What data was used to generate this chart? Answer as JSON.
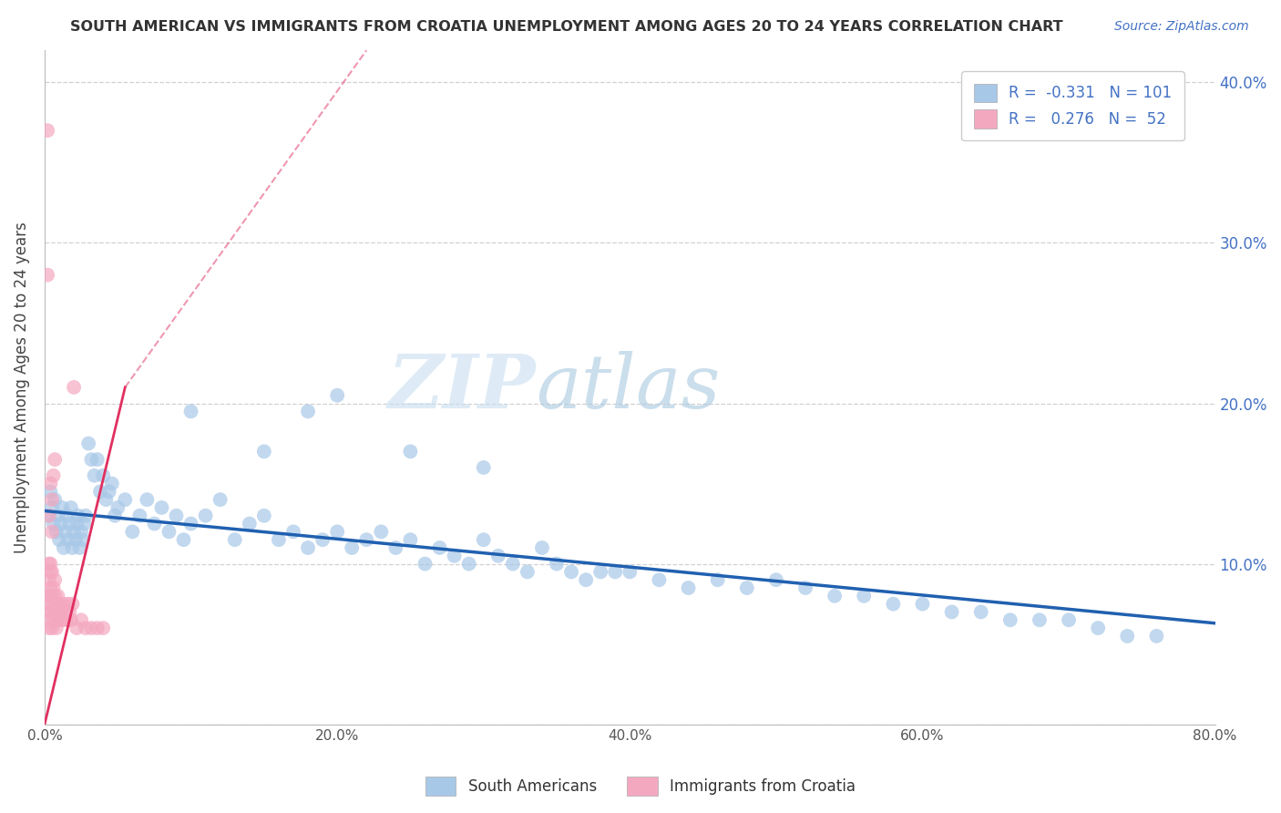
{
  "title": "SOUTH AMERICAN VS IMMIGRANTS FROM CROATIA UNEMPLOYMENT AMONG AGES 20 TO 24 YEARS CORRELATION CHART",
  "source": "Source: ZipAtlas.com",
  "ylabel": "Unemployment Among Ages 20 to 24 years",
  "xlim": [
    0.0,
    0.8
  ],
  "ylim": [
    0.0,
    0.42
  ],
  "xticks": [
    0.0,
    0.2,
    0.4,
    0.6,
    0.8
  ],
  "yticks": [
    0.0,
    0.1,
    0.2,
    0.3,
    0.4
  ],
  "xtick_labels": [
    "0.0%",
    "20.0%",
    "40.0%",
    "60.0%",
    "80.0%"
  ],
  "ytick_labels": [
    "",
    "10.0%",
    "20.0%",
    "30.0%",
    "40.0%"
  ],
  "blue_color": "#a8c8e8",
  "pink_color": "#f4a8c0",
  "blue_line_color": "#2060b0",
  "pink_line_color": "#e03060",
  "R_blue": -0.331,
  "N_blue": 101,
  "R_pink": 0.276,
  "N_pink": 52,
  "legend_label_blue": "South Americans",
  "legend_label_pink": "Immigrants from Croatia",
  "watermark_zip": "ZIP",
  "watermark_atlas": "atlas",
  "blue_trend_x0": 0.0,
  "blue_trend_y0": 0.133,
  "blue_trend_x1": 0.8,
  "blue_trend_y1": 0.063,
  "pink_trend_solid_x0": 0.0,
  "pink_trend_solid_y0": 0.0,
  "pink_trend_solid_x1": 0.055,
  "pink_trend_solid_y1": 0.21,
  "pink_trend_dash_x0": 0.055,
  "pink_trend_dash_y0": 0.21,
  "pink_trend_dash_x1": 0.22,
  "pink_trend_dash_y1": 0.42,
  "blue_scatter_x": [
    0.003,
    0.004,
    0.005,
    0.006,
    0.007,
    0.008,
    0.009,
    0.01,
    0.011,
    0.012,
    0.013,
    0.014,
    0.015,
    0.016,
    0.017,
    0.018,
    0.019,
    0.02,
    0.021,
    0.022,
    0.023,
    0.024,
    0.025,
    0.026,
    0.027,
    0.028,
    0.03,
    0.032,
    0.034,
    0.036,
    0.038,
    0.04,
    0.042,
    0.044,
    0.046,
    0.048,
    0.05,
    0.055,
    0.06,
    0.065,
    0.07,
    0.075,
    0.08,
    0.085,
    0.09,
    0.095,
    0.1,
    0.11,
    0.12,
    0.13,
    0.14,
    0.15,
    0.16,
    0.17,
    0.18,
    0.19,
    0.2,
    0.21,
    0.22,
    0.23,
    0.24,
    0.25,
    0.26,
    0.27,
    0.28,
    0.29,
    0.3,
    0.31,
    0.32,
    0.33,
    0.34,
    0.35,
    0.36,
    0.37,
    0.38,
    0.39,
    0.4,
    0.42,
    0.44,
    0.46,
    0.48,
    0.5,
    0.52,
    0.54,
    0.56,
    0.58,
    0.6,
    0.62,
    0.64,
    0.66,
    0.68,
    0.7,
    0.72,
    0.74,
    0.76,
    0.1,
    0.15,
    0.18,
    0.2,
    0.25,
    0.3
  ],
  "blue_scatter_y": [
    0.13,
    0.145,
    0.135,
    0.125,
    0.14,
    0.12,
    0.13,
    0.115,
    0.125,
    0.135,
    0.11,
    0.12,
    0.13,
    0.115,
    0.125,
    0.135,
    0.11,
    0.12,
    0.115,
    0.125,
    0.13,
    0.11,
    0.12,
    0.115,
    0.125,
    0.13,
    0.175,
    0.165,
    0.155,
    0.165,
    0.145,
    0.155,
    0.14,
    0.145,
    0.15,
    0.13,
    0.135,
    0.14,
    0.12,
    0.13,
    0.14,
    0.125,
    0.135,
    0.12,
    0.13,
    0.115,
    0.125,
    0.13,
    0.14,
    0.115,
    0.125,
    0.13,
    0.115,
    0.12,
    0.11,
    0.115,
    0.12,
    0.11,
    0.115,
    0.12,
    0.11,
    0.115,
    0.1,
    0.11,
    0.105,
    0.1,
    0.115,
    0.105,
    0.1,
    0.095,
    0.11,
    0.1,
    0.095,
    0.09,
    0.095,
    0.095,
    0.095,
    0.09,
    0.085,
    0.09,
    0.085,
    0.09,
    0.085,
    0.08,
    0.08,
    0.075,
    0.075,
    0.07,
    0.07,
    0.065,
    0.065,
    0.065,
    0.06,
    0.055,
    0.055,
    0.195,
    0.17,
    0.195,
    0.205,
    0.17,
    0.16
  ],
  "pink_scatter_x": [
    0.002,
    0.002,
    0.002,
    0.003,
    0.003,
    0.003,
    0.003,
    0.003,
    0.004,
    0.004,
    0.004,
    0.004,
    0.004,
    0.005,
    0.005,
    0.005,
    0.005,
    0.005,
    0.006,
    0.006,
    0.006,
    0.007,
    0.007,
    0.007,
    0.008,
    0.008,
    0.009,
    0.009,
    0.01,
    0.01,
    0.011,
    0.012,
    0.013,
    0.014,
    0.015,
    0.016,
    0.017,
    0.018,
    0.019,
    0.02,
    0.022,
    0.025,
    0.028,
    0.032,
    0.036,
    0.04,
    0.003,
    0.004,
    0.005,
    0.006,
    0.007,
    0.008
  ],
  "pink_scatter_y": [
    0.37,
    0.28,
    0.08,
    0.06,
    0.07,
    0.08,
    0.09,
    0.1,
    0.065,
    0.075,
    0.085,
    0.095,
    0.1,
    0.06,
    0.07,
    0.08,
    0.095,
    0.12,
    0.065,
    0.075,
    0.085,
    0.07,
    0.08,
    0.09,
    0.065,
    0.075,
    0.07,
    0.08,
    0.065,
    0.075,
    0.07,
    0.065,
    0.075,
    0.07,
    0.065,
    0.075,
    0.07,
    0.065,
    0.075,
    0.21,
    0.06,
    0.065,
    0.06,
    0.06,
    0.06,
    0.06,
    0.13,
    0.15,
    0.14,
    0.155,
    0.165,
    0.06
  ]
}
